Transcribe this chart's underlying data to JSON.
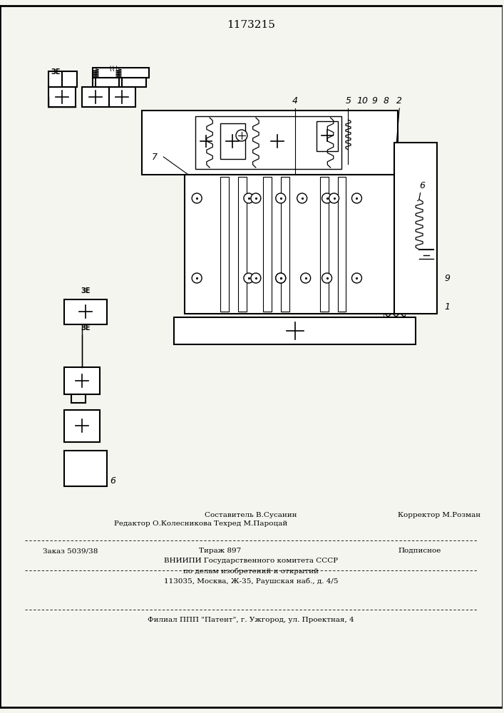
{
  "patent_number": "1173215",
  "background_color": "#f5f5f0",
  "line_color": "#000000",
  "hatch_color": "#000000",
  "text_color": "#000000",
  "footer_lines": [
    "Составитель В.Сусанин",
    "Редактор О.Колесникова   Техред М.Пароцай          Корректор М.Розман",
    "Заказ 5039/38           Тираж 897                  Подписное",
    "     ВНИИПИ Государственного комитета СССР",
    "      по делам изобретений и открытий",
    "   113035, Москва, Ж-35, Раушская наб., д. 4/5",
    "Филиал ППП \"Патент\", г. Ужгород, ул. Проектная, 4"
  ]
}
